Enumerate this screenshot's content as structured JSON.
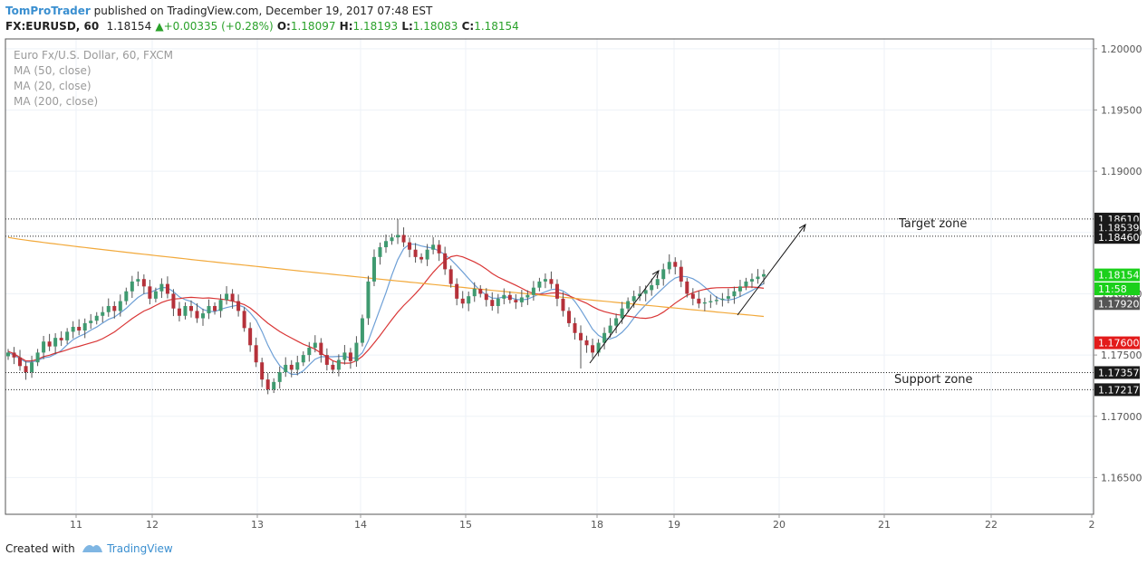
{
  "header": {
    "author": "TomProTrader",
    "published_text": "published on TradingView.com, December 19, 2017 07:48 EST"
  },
  "ohlc": {
    "symbol": "FX:EURUSD, 60",
    "last": "1.18154",
    "change": "+0.00335 (+0.28%)",
    "o_label": "O:",
    "o": "1.18097",
    "h_label": "H:",
    "h": "1.18193",
    "l_label": "L:",
    "l": "1.18083",
    "c_label": "C:",
    "c": "1.18154"
  },
  "legend": {
    "series": "Euro Fx/U.S. Dollar, 60, FXCM",
    "ma1": "MA (50, close)",
    "ma2": "MA (20, close)",
    "ma3": "MA (200, close)"
  },
  "annotations": {
    "target": "Target zone",
    "support": "Support zone"
  },
  "footer": {
    "created_with": "Created with",
    "brand": "TradingView"
  },
  "colors": {
    "up": "#3f9a70",
    "down": "#b5313a",
    "ma20": "#6d9fd6",
    "ma50": "#d93535",
    "ma200": "#f2a93b",
    "grid": "#eef2f7",
    "label_dark": "#1a1a1a",
    "label_gray": "#555555",
    "label_green": "#1bd01b",
    "label_red": "#e31b1b"
  },
  "chart_data": {
    "type": "candlestick",
    "symbol": "EUR/USD",
    "timeframe": "60",
    "y_range": [
      1.162,
      1.2008
    ],
    "y_ticks": [
      "1.20000",
      "1.19500",
      "1.19000",
      "1.18500",
      "1.18000",
      "1.17500",
      "1.17000",
      "1.16500"
    ],
    "x_ticks": [
      "11",
      "12",
      "13",
      "14",
      "15",
      "18",
      "19",
      "20",
      "21",
      "22",
      "2"
    ],
    "price_labels": [
      {
        "value": "1.18610",
        "price": 1.1861,
        "style": "dark"
      },
      {
        "value": "1.18539",
        "price": 1.18539,
        "style": "dark"
      },
      {
        "value": "1.18460",
        "price": 1.1846,
        "style": "dark"
      },
      {
        "value": "1.18154",
        "price": 1.18154,
        "style": "green"
      },
      {
        "value": "11:58",
        "price": 1.1804,
        "style": "green"
      },
      {
        "value": "1.17920",
        "price": 1.1792,
        "style": "gray"
      },
      {
        "value": "1.17600",
        "price": 1.176,
        "style": "red"
      },
      {
        "value": "1.17357",
        "price": 1.17357,
        "style": "dark"
      },
      {
        "value": "1.17217",
        "price": 1.17217,
        "style": "dark"
      }
    ],
    "zones": {
      "target": 1.1847,
      "support_top": 1.17357,
      "support_bottom": 1.17217,
      "high_line": 1.1861
    },
    "closes": [
      1.1752,
      1.1748,
      1.1741,
      1.1736,
      1.1744,
      1.1752,
      1.1761,
      1.1757,
      1.1764,
      1.1762,
      1.1769,
      1.1773,
      1.177,
      1.1776,
      1.1778,
      1.1782,
      1.1785,
      1.179,
      1.1786,
      1.1794,
      1.1802,
      1.181,
      1.1812,
      1.1806,
      1.1796,
      1.1802,
      1.1808,
      1.18,
      1.1788,
      1.1782,
      1.179,
      1.1786,
      1.178,
      1.1784,
      1.179,
      1.1786,
      1.1795,
      1.18,
      1.1794,
      1.1786,
      1.1772,
      1.1758,
      1.1744,
      1.173,
      1.1722,
      1.1728,
      1.1736,
      1.1742,
      1.1738,
      1.1744,
      1.175,
      1.1756,
      1.176,
      1.175,
      1.1742,
      1.1738,
      1.1746,
      1.1752,
      1.1745,
      1.176,
      1.178,
      1.181,
      1.183,
      1.1838,
      1.1843,
      1.1846,
      1.1848,
      1.1842,
      1.1836,
      1.183,
      1.1828,
      1.1836,
      1.184,
      1.1833,
      1.182,
      1.1808,
      1.1796,
      1.1792,
      1.1798,
      1.1804,
      1.18,
      1.1795,
      1.179,
      1.1796,
      1.1799,
      1.1795,
      1.1793,
      1.1797,
      1.1799,
      1.1805,
      1.181,
      1.1812,
      1.1808,
      1.1796,
      1.1786,
      1.1776,
      1.1768,
      1.1762,
      1.1758,
      1.1752,
      1.176,
      1.1768,
      1.1774,
      1.178,
      1.1788,
      1.1794,
      1.1798,
      1.18,
      1.1803,
      1.1807,
      1.1812,
      1.182,
      1.1826,
      1.1822,
      1.181,
      1.18,
      1.1796,
      1.1792,
      1.1793,
      1.1794,
      1.1795,
      1.1796,
      1.1798,
      1.1802,
      1.1806,
      1.181,
      1.1812,
      1.1814,
      1.1816
    ]
  }
}
